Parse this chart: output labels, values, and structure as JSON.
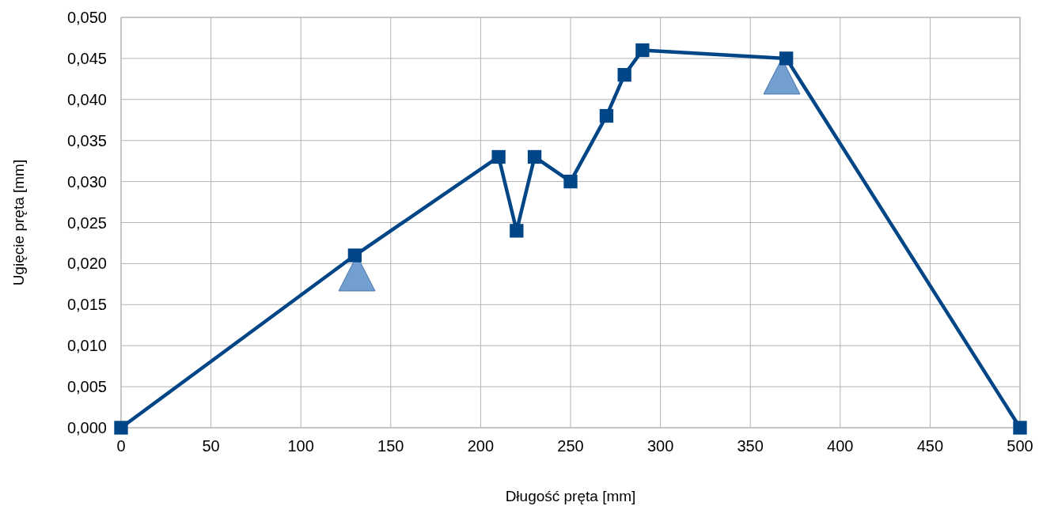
{
  "chart_data": {
    "type": "line",
    "xlabel": "Długość pręta [mm]",
    "ylabel": "Ugięcie pręta [mm]",
    "xlim": [
      0,
      500
    ],
    "xticks": [
      0,
      50,
      100,
      150,
      200,
      250,
      300,
      350,
      400,
      450,
      500
    ],
    "ylim": [
      0,
      0.05
    ],
    "yticks": [
      {
        "value": 0,
        "label": "0,000"
      },
      {
        "value": 0.005,
        "label": "0,005"
      },
      {
        "value": 0.01,
        "label": "0,010"
      },
      {
        "value": 0.015,
        "label": "0,015"
      },
      {
        "value": 0.02,
        "label": "0,020"
      },
      {
        "value": 0.025,
        "label": "0,025"
      },
      {
        "value": 0.03,
        "label": "0,030"
      },
      {
        "value": 0.035,
        "label": "0,035"
      },
      {
        "value": 0.04,
        "label": "0,040"
      },
      {
        "value": 0.045,
        "label": "0,045"
      },
      {
        "value": 0.05,
        "label": "0,050"
      }
    ],
    "grid": true,
    "line_style": "solid",
    "marker": "square",
    "series": [
      {
        "color": "#004586",
        "x": [
          0,
          130,
          210,
          220,
          230,
          250,
          270,
          280,
          290,
          370,
          500
        ],
        "values": [
          0,
          0.021,
          0.033,
          0.024,
          0.033,
          0.03,
          0.038,
          0.043,
          0.046,
          0.045,
          0
        ]
      }
    ]
  }
}
